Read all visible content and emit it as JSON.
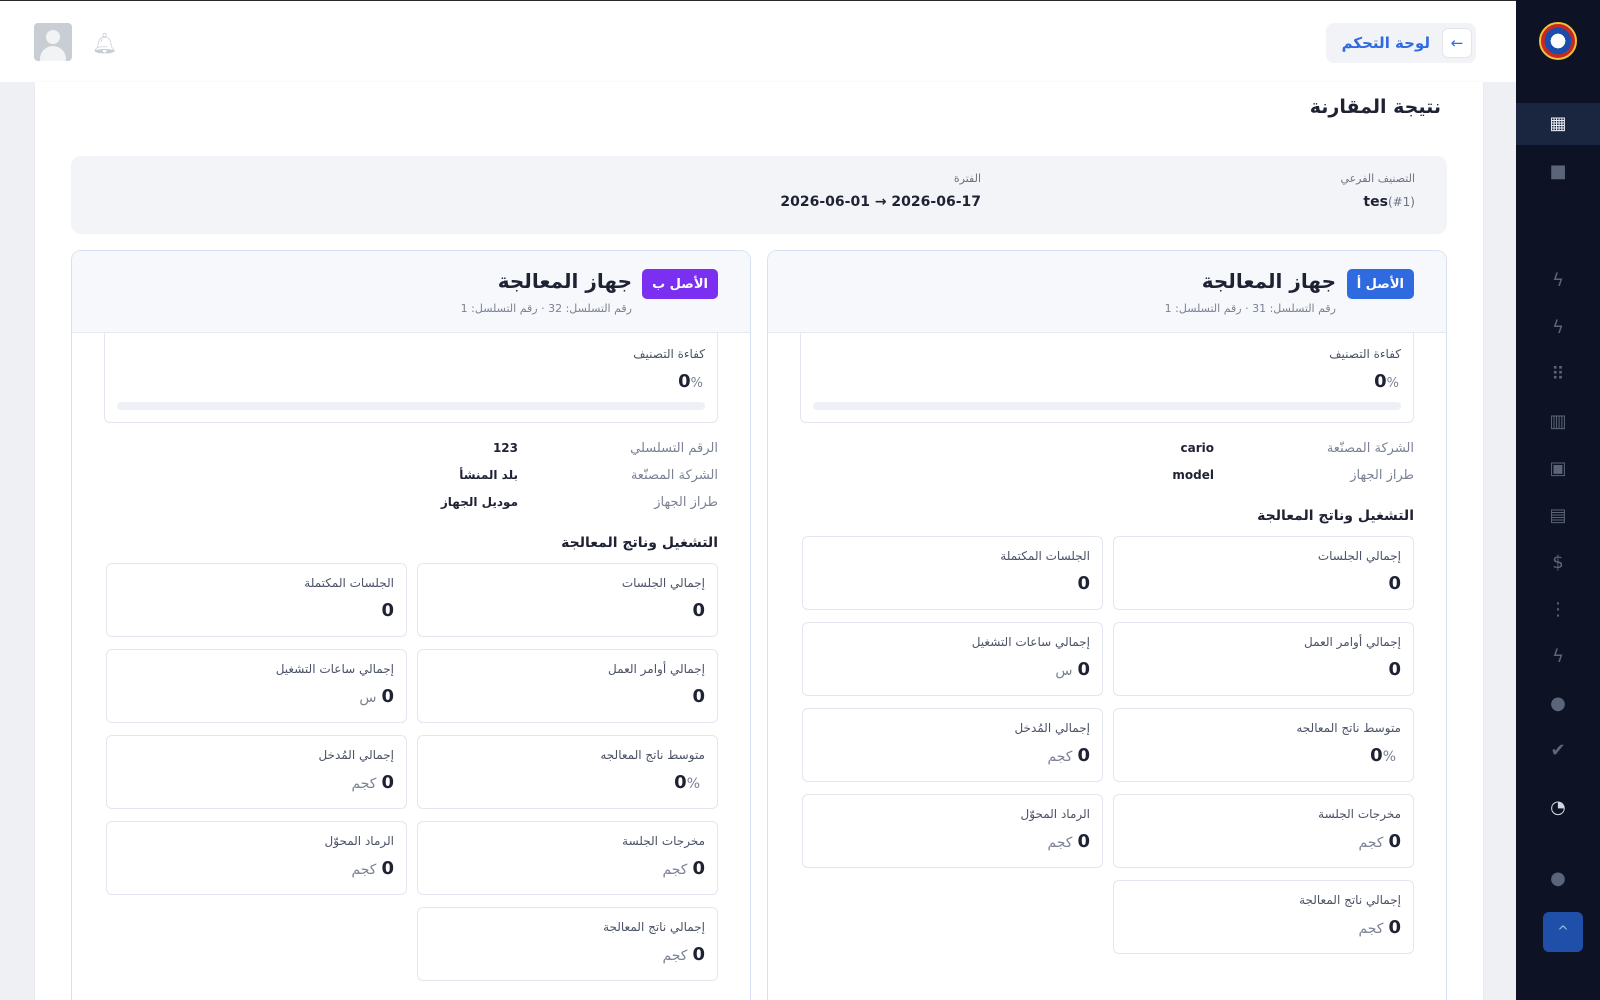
{
  "header": {
    "back_arrow": "←",
    "breadcrumb": "لوحة التحكم",
    "bell_icon": "bell-icon",
    "avatar_icon": "user-avatar"
  },
  "sidebar": {
    "icons": [
      "dashboard-icon",
      "folder-icon",
      "lightning-icon",
      "lightning-icon",
      "dots-grid-icon",
      "columns-icon",
      "square-icon",
      "trash-icon",
      "dollar-icon",
      "tree-icon",
      "lightning-icon",
      "users-icon",
      "check-badge-icon",
      "pie-icon",
      "user-icon"
    ],
    "fab_icon": "plus-icon"
  },
  "page": {
    "title": "نتيجة المقارنة"
  },
  "filters": {
    "subcategory_label": "التصنيف الفرعي",
    "subcategory_value": "tes",
    "subcategory_id": "(#1)",
    "period_label": "الفترة",
    "period_value": "2026-06-01 → 2026-06-17"
  },
  "asset_a": {
    "badge": "الأصل أ",
    "title": "جهاز المعالجة",
    "subtitle": "رقم التسلسل: 31 · رقم التسلسل: 1",
    "efficiency_label": "كفاءة التصنيف",
    "efficiency_value": "0",
    "efficiency_unit": "%",
    "efficiency_fraction": 0,
    "info": [
      {
        "key": "الشركة المصنّعة",
        "value": "cario"
      },
      {
        "key": "طراز الجهاز",
        "value": "model"
      }
    ],
    "section_title": "التشغيل وناتج المعالجة",
    "metrics": [
      {
        "label": "إجمالي الجلسات",
        "value": "0",
        "unit": ""
      },
      {
        "label": "الجلسات المكتملة",
        "value": "0",
        "unit": ""
      },
      {
        "label": "إجمالي أوامر العمل",
        "value": "0",
        "unit": ""
      },
      {
        "label": "إجمالي ساعات التشغيل",
        "value": "0",
        "unit": "س"
      },
      {
        "label": "متوسط ناتج المعالجه",
        "value": "0",
        "unit": "%"
      },
      {
        "label": "إجمالي المُدخل",
        "value": "0",
        "unit": "كجم"
      },
      {
        "label": "مخرجات الجلسة",
        "value": "0",
        "unit": "كجم"
      },
      {
        "label": "الرماد المحوّل",
        "value": "0",
        "unit": "كجم"
      },
      {
        "label": "إجمالي ناتج المعالجة",
        "value": "0",
        "unit": "كجم"
      }
    ]
  },
  "asset_b": {
    "badge": "الأصل ب",
    "title": "جهاز المعالجة",
    "subtitle": "رقم التسلسل: 32 · رقم التسلسل: 1",
    "efficiency_label": "كفاءة التصنيف",
    "efficiency_value": "0",
    "efficiency_unit": "%",
    "efficiency_fraction": 0,
    "info": [
      {
        "key": "الرقم التسلسلي",
        "value": "123"
      },
      {
        "key": "الشركة المصنّعة",
        "value": "بلد المنشأ"
      },
      {
        "key": "طراز الجهاز",
        "value": "موديل الجهاز"
      }
    ],
    "section_title": "التشغيل وناتج المعالجة",
    "metrics": [
      {
        "label": "إجمالي الجلسات",
        "value": "0",
        "unit": ""
      },
      {
        "label": "الجلسات المكتملة",
        "value": "0",
        "unit": ""
      },
      {
        "label": "إجمالي أوامر العمل",
        "value": "0",
        "unit": ""
      },
      {
        "label": "إجمالي ساعات التشغيل",
        "value": "0",
        "unit": "س"
      },
      {
        "label": "متوسط ناتج المعالجه",
        "value": "0",
        "unit": "%"
      },
      {
        "label": "إجمالي المُدخل",
        "value": "0",
        "unit": "كجم"
      },
      {
        "label": "مخرجات الجلسة",
        "value": "0",
        "unit": "كجم"
      },
      {
        "label": "الرماد المحوّل",
        "value": "0",
        "unit": "كجم"
      },
      {
        "label": "إجمالي ناتج المعالجة",
        "value": "0",
        "unit": "كجم"
      }
    ]
  }
}
